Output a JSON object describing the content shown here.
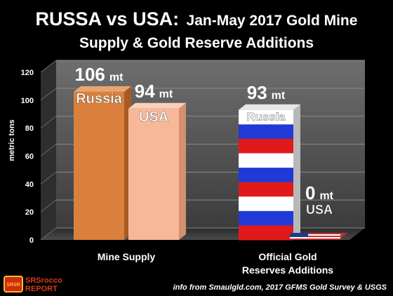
{
  "title_line1_bold": "RUSSA vs USA:",
  "title_line1_rest": "Jan-May 2017 Gold Mine",
  "title_line2": "Supply & Gold Reserve Additions",
  "source_note": "info from Smaulgld.com, 2017 GFMS Gold Survey & USGS",
  "logo": {
    "badge": "SRSR",
    "line1": "SRSrocco",
    "line2": "REPORT"
  },
  "chart_data": {
    "type": "bar",
    "ylabel": "metric tons",
    "ylim": [
      0,
      120
    ],
    "yticks": [
      0,
      20,
      40,
      60,
      80,
      100,
      120
    ],
    "grid": true,
    "categories": [
      "Mine Supply",
      "Official Gold Reserves Additions"
    ],
    "category_lines": [
      [
        "Mine Supply"
      ],
      [
        "Official Gold",
        "Reserves Additions"
      ]
    ],
    "series": [
      {
        "name": "Russia",
        "values": [
          106,
          93
        ],
        "value_labels": [
          "106 mt",
          "93 mt"
        ]
      },
      {
        "name": "USA",
        "values": [
          94,
          0
        ],
        "value_labels": [
          "94 mt",
          "0 mt"
        ]
      }
    ]
  },
  "colors": {
    "background": "#000000",
    "plot_back": "#5a5a5a",
    "russia_front": "#d9803d",
    "russia_side": "#a85a22",
    "usa_front": "#f7b89a",
    "usa_side": "#d48f6f",
    "flag_white": "#ffffff",
    "flag_blue": "#1f3ad6",
    "flag_red": "#e01a1a",
    "text": "#ffffff"
  }
}
